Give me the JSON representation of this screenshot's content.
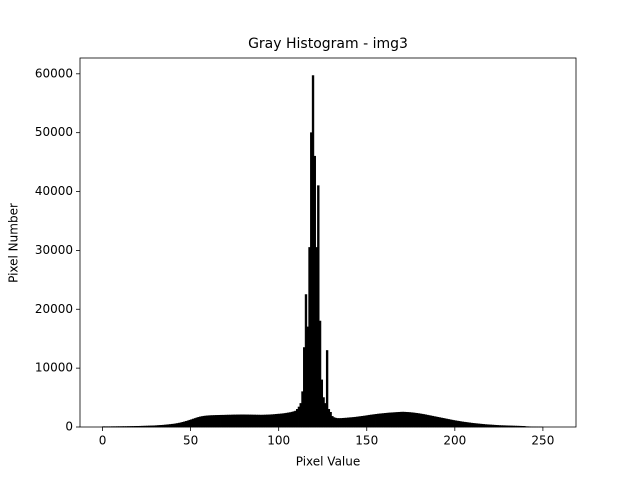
{
  "chart_data": {
    "type": "histogram",
    "title": "Gray Histogram - img3",
    "x_label": "Pixel Value",
    "y_label": "Pixel Number",
    "bins": [
      0,
      1,
      2,
      3,
      4,
      5,
      6,
      7,
      8,
      9,
      10,
      11,
      12,
      13,
      14,
      15,
      16,
      17,
      18,
      19,
      20,
      21,
      22,
      23,
      24,
      25,
      26,
      27,
      28,
      29,
      30,
      31,
      32,
      33,
      34,
      35,
      36,
      37,
      38,
      39,
      40,
      41,
      42,
      43,
      44,
      45,
      46,
      47,
      48,
      49,
      50,
      51,
      52,
      53,
      54,
      55,
      56,
      57,
      58,
      59,
      60,
      61,
      62,
      63,
      64,
      65,
      66,
      67,
      68,
      69,
      70,
      71,
      72,
      73,
      74,
      75,
      76,
      77,
      78,
      79,
      80,
      81,
      82,
      83,
      84,
      85,
      86,
      87,
      88,
      89,
      90,
      91,
      92,
      93,
      94,
      95,
      96,
      97,
      98,
      99,
      100,
      101,
      102,
      103,
      104,
      105,
      106,
      107,
      108,
      109,
      110,
      111,
      112,
      113,
      114,
      115,
      116,
      117,
      118,
      119,
      120,
      121,
      122,
      123,
      124,
      125,
      126,
      127,
      128,
      129,
      130,
      131,
      132,
      133,
      134,
      135,
      136,
      137,
      138,
      139,
      140,
      141,
      142,
      143,
      144,
      145,
      146,
      147,
      148,
      149,
      150,
      151,
      152,
      153,
      154,
      155,
      156,
      157,
      158,
      159,
      160,
      161,
      162,
      163,
      164,
      165,
      166,
      167,
      168,
      169,
      170,
      171,
      172,
      173,
      174,
      175,
      176,
      177,
      178,
      179,
      180,
      181,
      182,
      183,
      184,
      185,
      186,
      187,
      188,
      189,
      190,
      191,
      192,
      193,
      194,
      195,
      196,
      197,
      198,
      199,
      200,
      201,
      202,
      203,
      204,
      205,
      206,
      207,
      208,
      209,
      210,
      211,
      212,
      213,
      214,
      215,
      216,
      217,
      218,
      219,
      220,
      221,
      222,
      223,
      224,
      225,
      226,
      227,
      228,
      229,
      230,
      231,
      232,
      233,
      234,
      235,
      236,
      237,
      238,
      239,
      240,
      241,
      242,
      243,
      244,
      245,
      246,
      247,
      248,
      249,
      250,
      251,
      252,
      253,
      254,
      255,
      256
    ],
    "counts": [
      60,
      50,
      50,
      50,
      50,
      60,
      60,
      60,
      70,
      70,
      70,
      80,
      80,
      80,
      90,
      90,
      100,
      100,
      110,
      120,
      120,
      130,
      140,
      150,
      160,
      170,
      180,
      190,
      200,
      210,
      230,
      250,
      270,
      290,
      310,
      340,
      370,
      400,
      430,
      470,
      500,
      550,
      600,
      660,
      720,
      800,
      880,
      960,
      1050,
      1150,
      1250,
      1350,
      1450,
      1550,
      1640,
      1720,
      1780,
      1830,
      1870,
      1900,
      1920,
      1940,
      1950,
      1960,
      1970,
      1980,
      1990,
      2000,
      2000,
      2010,
      2020,
      2030,
      2030,
      2040,
      2050,
      2050,
      2060,
      2060,
      2070,
      2070,
      2070,
      2060,
      2060,
      2050,
      2050,
      2040,
      2040,
      2030,
      2030,
      2020,
      2020,
      2030,
      2040,
      2050,
      2060,
      2080,
      2100,
      2120,
      2150,
      2180,
      2200,
      2230,
      2260,
      2300,
      2350,
      2400,
      2450,
      2520,
      2600,
      2700,
      3000,
      3400,
      4000,
      6000,
      13500,
      22500,
      17000,
      30500,
      50000,
      59700,
      46000,
      30500,
      41000,
      18000,
      8000,
      5000,
      4000,
      13000,
      3000,
      2500,
      1800,
      1600,
      1500,
      1450,
      1450,
      1450,
      1480,
      1500,
      1520,
      1550,
      1580,
      1600,
      1630,
      1660,
      1700,
      1740,
      1780,
      1820,
      1860,
      1900,
      1950,
      2000,
      2040,
      2080,
      2120,
      2160,
      2200,
      2230,
      2260,
      2290,
      2320,
      2350,
      2380,
      2400,
      2420,
      2440,
      2460,
      2480,
      2500,
      2520,
      2530,
      2520,
      2500,
      2480,
      2460,
      2430,
      2400,
      2360,
      2320,
      2280,
      2230,
      2180,
      2130,
      2070,
      2010,
      1950,
      1890,
      1830,
      1770,
      1710,
      1650,
      1590,
      1530,
      1470,
      1410,
      1350,
      1290,
      1230,
      1170,
      1110,
      1060,
      1010,
      960,
      910,
      860,
      820,
      780,
      740,
      700,
      660,
      620,
      590,
      560,
      530,
      500,
      470,
      440,
      410,
      390,
      370,
      350,
      330,
      310,
      290,
      270,
      250,
      240,
      230,
      220,
      210,
      200,
      190,
      180,
      170,
      160,
      150,
      140,
      130,
      120,
      110,
      60,
      50,
      40,
      30,
      20,
      15,
      10,
      5,
      5,
      5,
      0,
      0,
      0,
      0,
      0,
      0
    ],
    "color": "#000000",
    "xlim": [
      -12.8,
      268.8
    ],
    "ylim": [
      0,
      62685
    ],
    "xticks": [
      0,
      50,
      100,
      150,
      200,
      250
    ],
    "yticks": [
      0,
      10000,
      20000,
      30000,
      40000,
      50000,
      60000
    ]
  }
}
